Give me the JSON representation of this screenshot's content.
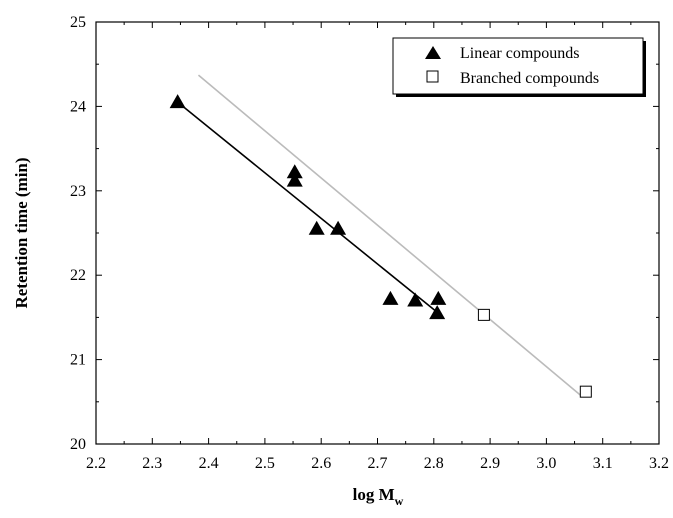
{
  "chart_data": {
    "type": "scatter",
    "title": "",
    "xlabel": "log M",
    "xlabel_subscript": "w",
    "ylabel": "Retention time (min)",
    "xlim": [
      2.2,
      3.2
    ],
    "ylim": [
      20,
      25
    ],
    "xticks": [
      "2.2",
      "2.3",
      "2.4",
      "2.5",
      "2.6",
      "2.7",
      "2.8",
      "2.9",
      "3.0",
      "3.1",
      "3.2"
    ],
    "yticks": [
      "20",
      "21",
      "22",
      "23",
      "24",
      "25"
    ],
    "grid": false,
    "legend_position": "top-right",
    "series": [
      {
        "name": "Linear compounds",
        "marker": "filled-triangle",
        "color": "#000000",
        "points": [
          [
            2.345,
            24.05
          ],
          [
            2.553,
            23.22
          ],
          [
            2.553,
            23.12
          ],
          [
            2.592,
            22.55
          ],
          [
            2.63,
            22.55
          ],
          [
            2.723,
            21.72
          ],
          [
            2.767,
            21.7
          ],
          [
            2.806,
            21.55
          ],
          [
            2.808,
            21.72
          ]
        ],
        "fit": {
          "from": [
            2.345,
            24.05
          ],
          "to": [
            2.808,
            21.55
          ],
          "color": "#000000"
        }
      },
      {
        "name": "Branched compounds",
        "marker": "open-square",
        "color": "#000000",
        "points": [
          [
            2.889,
            21.53
          ],
          [
            3.07,
            20.62
          ]
        ],
        "fit": {
          "from": [
            2.382,
            24.37
          ],
          "to": [
            3.062,
            20.57
          ],
          "color": "#bbbbbb"
        }
      }
    ]
  }
}
